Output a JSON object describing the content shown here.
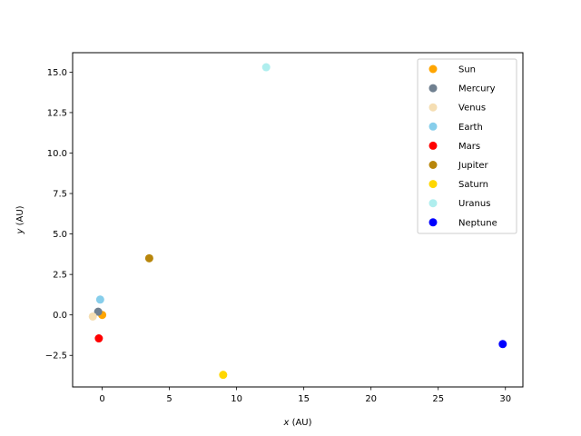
{
  "chart_data": {
    "type": "scatter",
    "title": "",
    "xlabel": {
      "var": "x",
      "unit": "(AU)"
    },
    "ylabel": {
      "var": "y",
      "unit": "(AU)"
    },
    "xlim": [
      -2.2,
      31.3
    ],
    "ylim": [
      -4.45,
      16.2
    ],
    "xticks": [
      0,
      5,
      10,
      15,
      20,
      25,
      30
    ],
    "yticks": [
      -2.5,
      0.0,
      2.5,
      5.0,
      7.5,
      10.0,
      12.5,
      15.0
    ],
    "xtick_labels": [
      "0",
      "5",
      "10",
      "15",
      "20",
      "25",
      "30"
    ],
    "ytick_labels": [
      "−2.5",
      "0.0",
      "2.5",
      "5.0",
      "7.5",
      "10.0",
      "12.5",
      "15.0"
    ],
    "grid": false,
    "legend_position": "top-right",
    "series": [
      {
        "name": "Sun",
        "color": "#ffa500",
        "x": 0.0,
        "y": 0.0
      },
      {
        "name": "Mercury",
        "color": "#708090",
        "x": -0.3,
        "y": 0.2
      },
      {
        "name": "Venus",
        "color": "#f5deb3",
        "x": -0.7,
        "y": -0.1
      },
      {
        "name": "Earth",
        "color": "#87ceeb",
        "x": -0.15,
        "y": 0.95
      },
      {
        "name": "Mars",
        "color": "#ff0000",
        "x": -0.25,
        "y": -1.45
      },
      {
        "name": "Jupiter",
        "color": "#b8860b",
        "x": 3.5,
        "y": 3.5
      },
      {
        "name": "Saturn",
        "color": "#ffd700",
        "x": 9.0,
        "y": -3.7
      },
      {
        "name": "Uranus",
        "color": "#afeeee",
        "x": 12.2,
        "y": 15.3
      },
      {
        "name": "Neptune",
        "color": "#0000ff",
        "x": 29.8,
        "y": -1.8
      }
    ]
  }
}
